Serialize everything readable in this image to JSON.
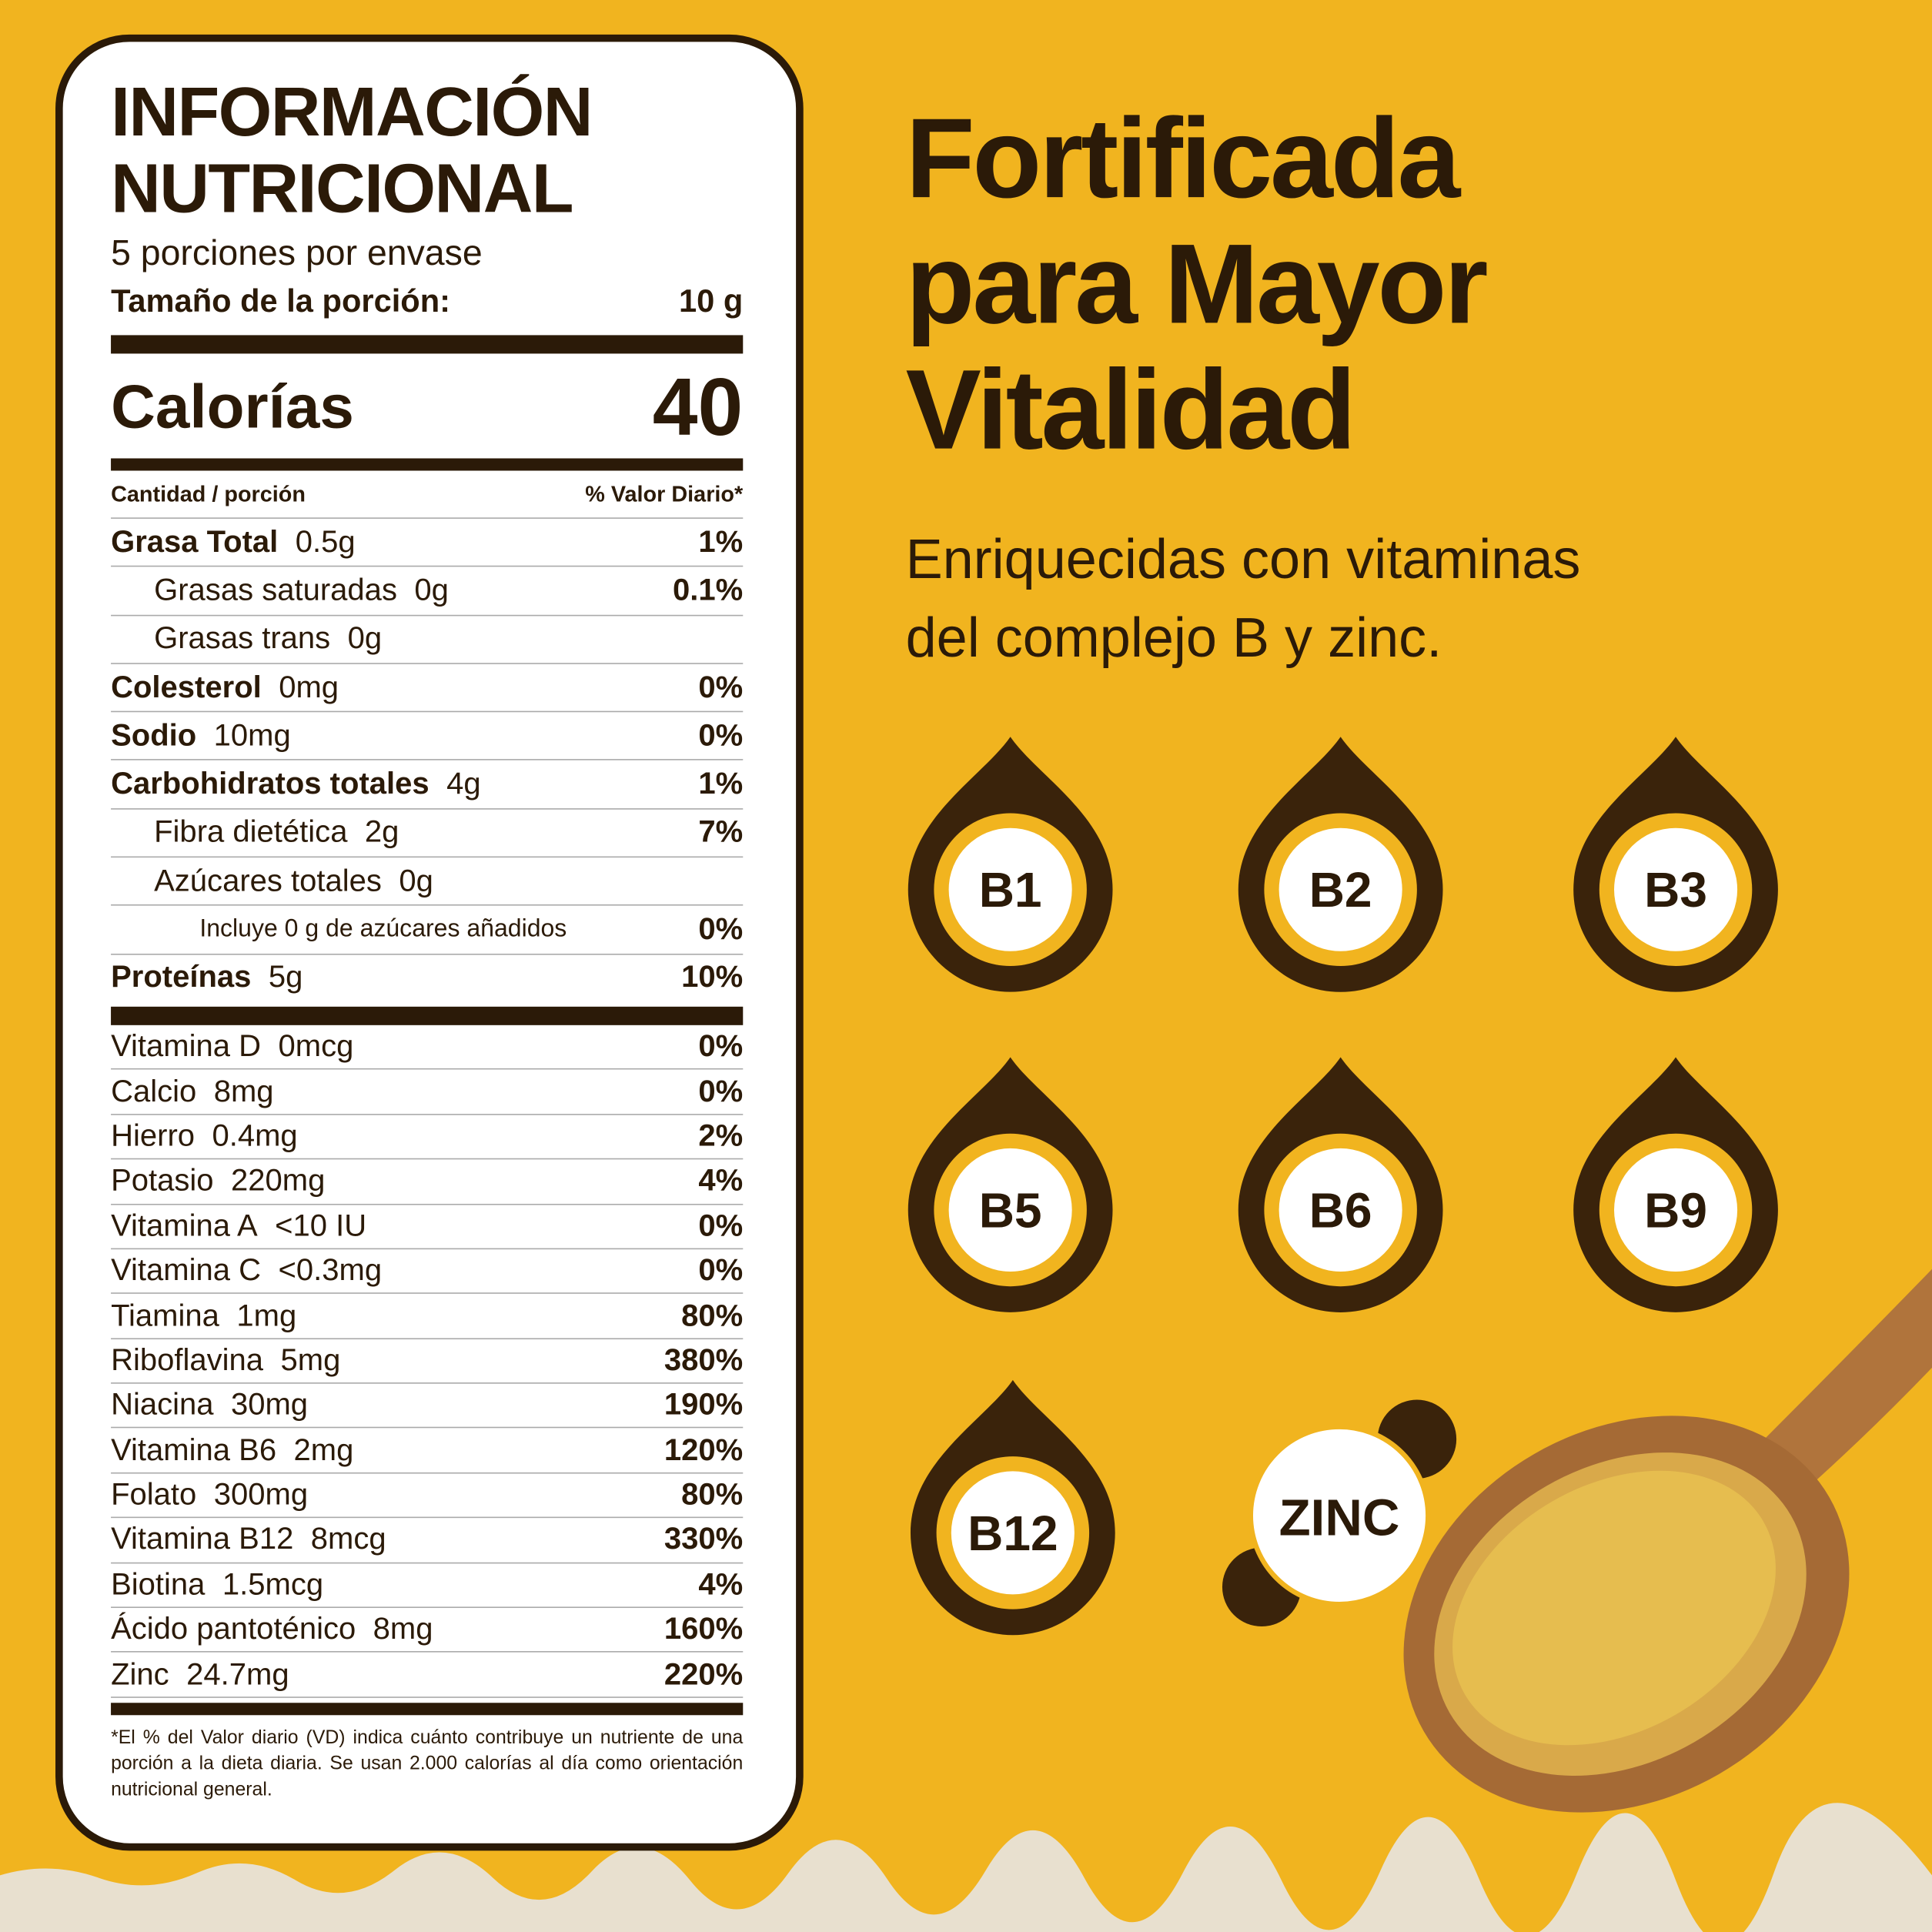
{
  "label": {
    "title": [
      "INFORMACIÓN",
      "NUTRICIONAL"
    ],
    "servings": "5 porciones por envase",
    "serving_size": {
      "label": "Tamaño de la porción:",
      "value": "10 g"
    },
    "calories": {
      "label": "Calorías",
      "value": "40"
    },
    "header": {
      "amount": "Cantidad / porción",
      "dv": "% Valor Diario*"
    },
    "nutrients": [
      {
        "name": "Grasa Total",
        "amount": "0.5g",
        "dv": "1%",
        "sub": [
          {
            "name": "Grasas saturadas",
            "amount": "0g",
            "dv": "0.1%"
          },
          {
            "name": "Grasas trans",
            "amount": "0g"
          }
        ]
      },
      {
        "name": "Colesterol",
        "amount": "0mg",
        "dv": "0%"
      },
      {
        "name": "Sodio",
        "amount": "10mg",
        "dv": "0%"
      },
      {
        "name": "Carbohidratos totales",
        "amount": "4g",
        "dv": "1%",
        "sub": [
          {
            "name": "Fibra dietética",
            "amount": "2g",
            "dv": "7%"
          },
          {
            "name": "Azúcares totales",
            "amount": "0g",
            "sub": [
              {
                "name": "Incluye 0 g de azúcares añadidos",
                "dv": "0%"
              }
            ]
          }
        ]
      },
      {
        "name": "Proteínas",
        "amount": "5g",
        "dv": "10%"
      }
    ],
    "vitamins": [
      {
        "name": "Vitamina D",
        "amount": "0mcg",
        "dv": "0%"
      },
      {
        "name": "Calcio",
        "amount": "8mg",
        "dv": "0%"
      },
      {
        "name": "Hierro",
        "amount": "0.4mg",
        "dv": "2%"
      },
      {
        "name": "Potasio",
        "amount": "220mg",
        "dv": "4%"
      },
      {
        "name": "Vitamina A",
        "amount": "<10 IU",
        "dv": "0%"
      },
      {
        "name": "Vitamina C",
        "amount": "<0.3mg",
        "dv": "0%"
      },
      {
        "name": "Tiamina",
        "amount": "1mg",
        "dv": "80%"
      },
      {
        "name": "Riboflavina",
        "amount": "5mg",
        "dv": "380%"
      },
      {
        "name": "Niacina",
        "amount": "30mg",
        "dv": "190%"
      },
      {
        "name": "Vitamina B6",
        "amount": "2mg",
        "dv": "120%"
      },
      {
        "name": "Folato",
        "amount": "300mg",
        "dv": "80%"
      },
      {
        "name": "Vitamina B12",
        "amount": "8mcg",
        "dv": "330%"
      },
      {
        "name": "Biotina",
        "amount": "1.5mcg",
        "dv": "4%"
      },
      {
        "name": "Ácido pantoténico",
        "amount": "8mg",
        "dv": "160%"
      },
      {
        "name": "Zinc",
        "amount": "24.7mg",
        "dv": "220%"
      }
    ],
    "footnote": "*El % del Valor diario (VD) indica cuánto contribuye un nutriente de una porción a la dieta diaria. Se usan 2.000 calorías al día como orientación nutricional general."
  },
  "headline": [
    "Fortificada",
    "para Mayor",
    "Vitalidad"
  ],
  "subtitle": [
    "Enriquecidas con vitaminas",
    "del complejo B y zinc."
  ],
  "drops": [
    "B1",
    "B2",
    "B3",
    "B5",
    "B6",
    "B9",
    "B12"
  ],
  "zinc": "ZINC"
}
